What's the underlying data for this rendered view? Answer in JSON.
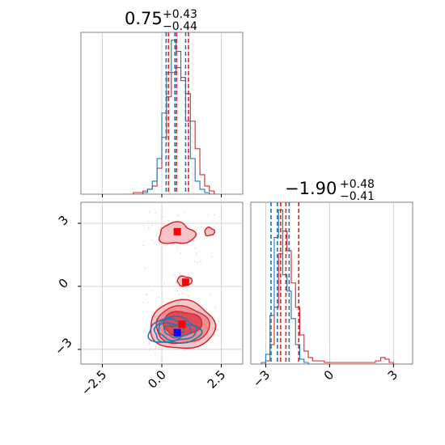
{
  "chart_data": {
    "type": "corner",
    "parameters": [
      {
        "id": "p1",
        "title_main": "0.75",
        "title_plus": "+0.43",
        "title_minus": "−0.44",
        "range": [
          -3.4,
          3.4
        ],
        "ticks": [
          {
            "v": -2.5,
            "label": "−2.5"
          },
          {
            "v": 0.0,
            "label": "0.0"
          },
          {
            "v": 2.5,
            "label": "2.5"
          }
        ]
      },
      {
        "id": "p2",
        "title_main": "−1.90",
        "title_plus": "+0.48",
        "title_minus": "−0.41",
        "range": [
          -3.7,
          3.9
        ],
        "ticks": [
          {
            "v": -3,
            "label": "−3"
          },
          {
            "v": 0,
            "label": "0"
          },
          {
            "v": 3,
            "label": "3"
          }
        ]
      }
    ],
    "colors": {
      "blue": "#1f77b4",
      "red": "#d62728"
    },
    "marginal_p1": {
      "x_centers": [
        -1.3,
        -1.1,
        -0.9,
        -0.7,
        -0.5,
        -0.3,
        -0.1,
        0.1,
        0.3,
        0.5,
        0.7,
        0.9,
        1.1,
        1.3,
        1.5,
        1.7,
        1.9,
        2.1,
        2.3
      ],
      "blue": [
        0,
        0,
        0,
        1,
        3,
        8,
        22,
        50,
        75,
        95,
        88,
        70,
        45,
        22,
        8,
        3,
        1,
        0,
        0
      ],
      "red": [
        0,
        1,
        1,
        2,
        3,
        5,
        16,
        35,
        60,
        75,
        78,
        72,
        62,
        45,
        28,
        12,
        5,
        2,
        0
      ],
      "quantiles_blue": [
        0.18,
        0.55,
        1.0
      ],
      "quantiles_red": [
        0.28,
        0.62,
        1.12
      ]
    },
    "marginal_p2": {
      "x_centers": [
        -3.1,
        -2.9,
        -2.7,
        -2.5,
        -2.3,
        -2.1,
        -1.9,
        -1.7,
        -1.5,
        -1.3,
        -1.1,
        -0.9,
        -0.7,
        -0.5,
        0.0,
        0.5,
        1.0,
        1.5,
        2.0,
        2.3,
        2.5,
        2.7,
        2.9,
        3.1
      ],
      "blue": [
        1,
        6,
        30,
        78,
        95,
        55,
        45,
        28,
        12,
        3,
        1,
        0,
        0,
        0,
        0,
        0,
        0,
        0,
        0,
        0,
        0,
        0,
        0,
        0
      ],
      "red": [
        0,
        2,
        12,
        35,
        68,
        82,
        70,
        50,
        35,
        18,
        8,
        4,
        2,
        2,
        1,
        1,
        1,
        1,
        1,
        2,
        4,
        3,
        1,
        0
      ],
      "quantiles_blue": [
        -2.75,
        -2.45,
        -1.9
      ],
      "quantiles_red": [
        -2.3,
        -2.05,
        -1.45
      ]
    },
    "joint": {
      "red_modes": [
        {
          "x": 0.65,
          "y": 2.6,
          "label": "upper"
        },
        {
          "x": 1.0,
          "y": 0.2,
          "label": "middle"
        },
        {
          "x": 0.85,
          "y": -1.8,
          "label": "lower"
        }
      ],
      "blue_mode": {
        "x": 0.65,
        "y": -2.2
      },
      "ylim": [
        -3.7,
        4.0
      ]
    }
  }
}
